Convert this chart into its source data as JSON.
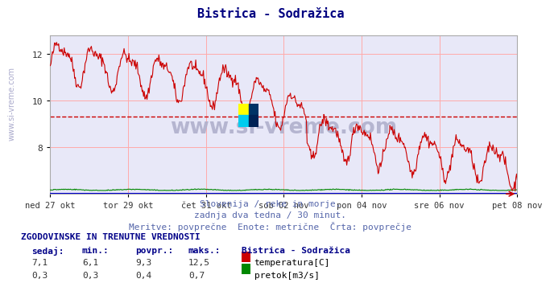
{
  "title": "Bistrica - Sodražica",
  "title_color": "#000080",
  "bg_color": "#ffffff",
  "plot_bg_color": "#e8e8f8",
  "grid_color": "#ffaaaa",
  "xlabel_dates": [
    "ned 27 okt",
    "tor 29 okt",
    "čet 31 okt",
    "sob 02 nov",
    "pon 04 nov",
    "sre 06 nov",
    "pet 08 nov"
  ],
  "ylabel_ticks": [
    8,
    10,
    12
  ],
  "avg_line_value": 9.3,
  "watermark_text": "www.si-vreme.com",
  "subtitle1": "Slovenija / reke in morje.",
  "subtitle2": "zadnja dva tedna / 30 minut.",
  "subtitle3": "Meritve: povprečne  Enote: metrične  Črta: povprečje",
  "footer_header": "ZGODOVINSKE IN TRENUTNE VREDNOSTI",
  "col_headers": [
    "sedaj:",
    "min.:",
    "povpr.:",
    "maks.:"
  ],
  "row1_vals": [
    "7,1",
    "6,1",
    "9,3",
    "12,5"
  ],
  "row2_vals": [
    "0,3",
    "0,3",
    "0,4",
    "0,7"
  ],
  "legend_station": "Bistrica - Sodražica",
  "legend1_label": "temperatura[C]",
  "legend2_label": "pretok[m3/s]",
  "temp_color": "#cc0000",
  "flow_color": "#008800",
  "level_color": "#0000cc",
  "avg_line_color": "#cc0000",
  "n_points": 672,
  "ymin": 6.0,
  "ymax": 12.8,
  "watermark_color": "#b0b0cc"
}
